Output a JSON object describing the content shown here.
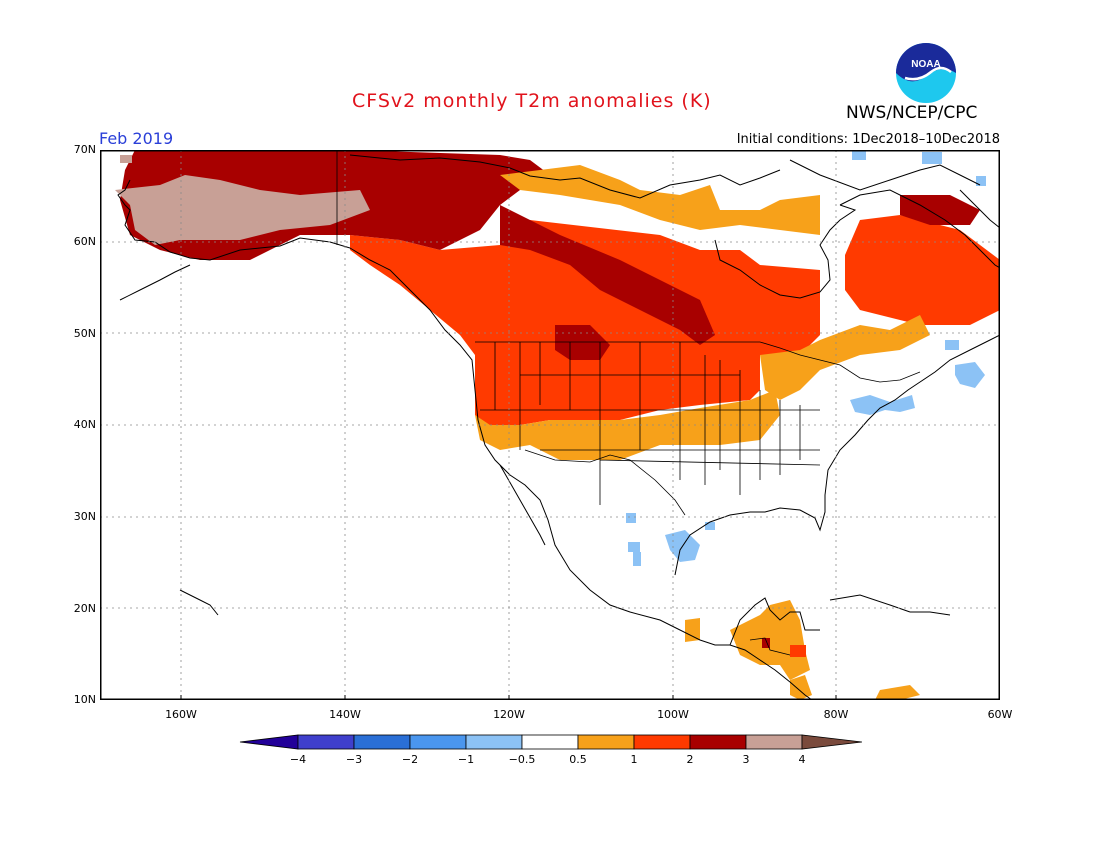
{
  "header": {
    "title": "CFSv2 monthly T2m anomalies (K)",
    "org": "NWS/NCEP/CPC",
    "month": "Feb 2019",
    "initial_conditions": "Initial conditions: 1Dec2018–10Dec2018",
    "logo_text": "NOAA"
  },
  "axes": {
    "lat_labels": [
      "70N",
      "60N",
      "50N",
      "40N",
      "30N",
      "20N",
      "10N"
    ],
    "lon_labels": [
      "160W",
      "140W",
      "120W",
      "100W",
      "80W",
      "60W"
    ]
  },
  "colorbar": {
    "labels": [
      "−4",
      "−3",
      "−2",
      "−1",
      "−0.5",
      "0.5",
      "1",
      "2",
      "3",
      "4"
    ],
    "colors": [
      "#220099",
      "#3f3fcc",
      "#2a6fd6",
      "#4a96ee",
      "#8cc2f5",
      "#ffffff",
      "#f7a11a",
      "#ff3a00",
      "#a80000",
      "#c8a096",
      "#7a4a3c"
    ]
  },
  "palette": {
    "ocean": "#ffffff",
    "coast": "#000000",
    "grid": "#8a8a8a"
  }
}
